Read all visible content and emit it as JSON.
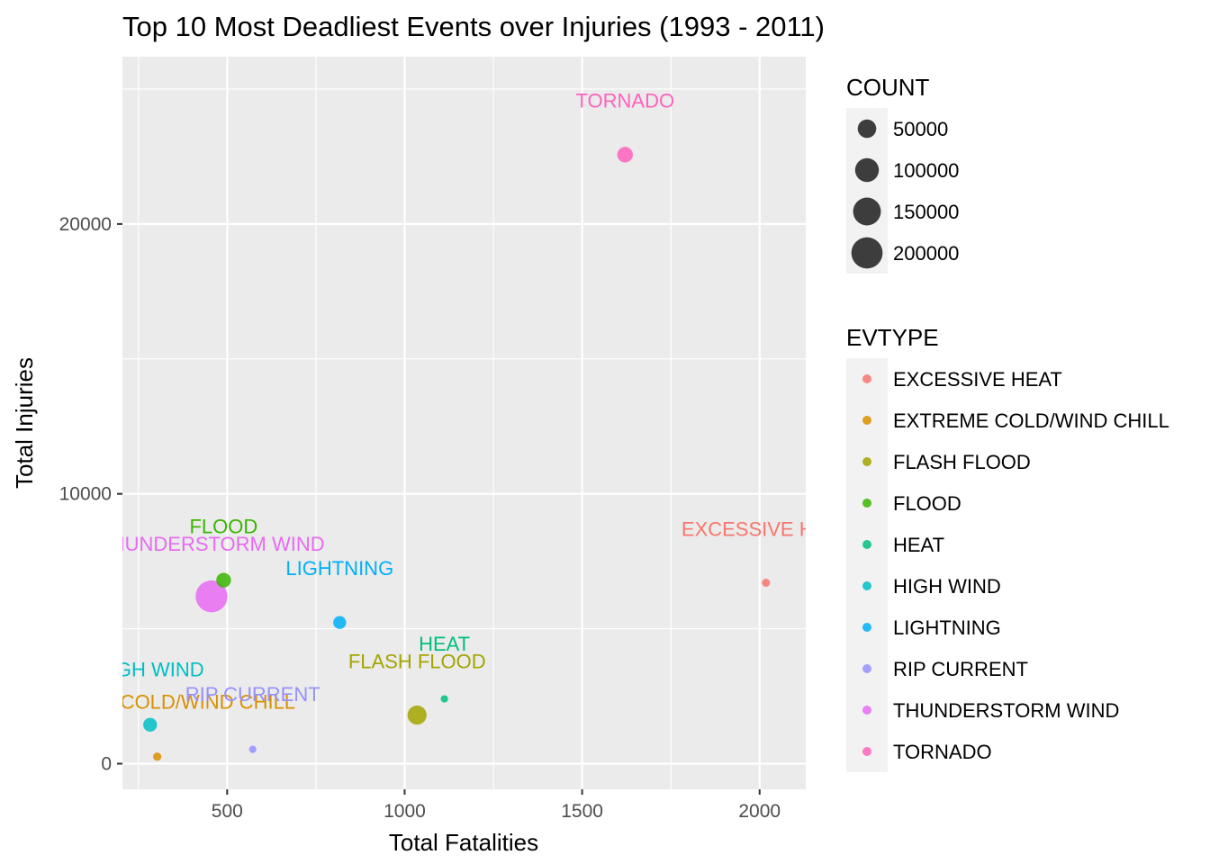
{
  "chart_data": {
    "type": "scatter",
    "title": "Top 10 Most Deadliest Events over Injuries (1993 - 2011)",
    "xlabel": "Total Fatalities",
    "ylabel": "Total Injuries",
    "xlim": [
      205,
      2130
    ],
    "ylim": [
      -950,
      26200
    ],
    "xticks": [
      500,
      1000,
      1500,
      2000
    ],
    "yticks": [
      0,
      10000,
      20000
    ],
    "grid": true,
    "legend_placement": "right",
    "size_legend": {
      "title": "COUNT",
      "entries": [
        {
          "label": "50000",
          "value": 50000
        },
        {
          "label": "100000",
          "value": 100000
        },
        {
          "label": "150000",
          "value": 150000
        },
        {
          "label": "200000",
          "value": 200000
        }
      ]
    },
    "color_legend": {
      "title": "EVTYPE",
      "entries": [
        {
          "label": "EXCESSIVE HEAT",
          "color": "#F8766D"
        },
        {
          "label": "EXTREME COLD/WIND CHILL",
          "color": "#D89000"
        },
        {
          "label": "FLASH FLOOD",
          "color": "#A3A500"
        },
        {
          "label": "FLOOD",
          "color": "#39B600"
        },
        {
          "label": "HEAT",
          "color": "#00BF7D"
        },
        {
          "label": "HIGH WIND",
          "color": "#00BFC4"
        },
        {
          "label": "LIGHTNING",
          "color": "#00B0F6"
        },
        {
          "label": "RIP CURRENT",
          "color": "#9590FF"
        },
        {
          "label": "THUNDERSTORM WIND",
          "color": "#E76BF3"
        },
        {
          "label": "TORNADO",
          "color": "#FF62BC"
        }
      ]
    },
    "points": [
      {
        "name": "EXCESSIVE HEAT",
        "label": "EXCESSIVE HEAT",
        "x": 2018,
        "y": 6703,
        "count": 1700,
        "color": "#F8766D",
        "label_x": 2018,
        "label_y": 8700
      },
      {
        "name": "EXTREME COLD/WIND CHILL",
        "label": "EXTREME COLD/WIND CHILL",
        "x": 303,
        "y": 260,
        "count": 2000,
        "color": "#D89000",
        "label_x": 303,
        "label_y": 2300
      },
      {
        "name": "FLASH FLOOD",
        "label": "FLASH FLOOD",
        "x": 1035,
        "y": 1800,
        "count": 55000,
        "color": "#A3A500",
        "label_x": 1035,
        "label_y": 3800
      },
      {
        "name": "FLOOD",
        "label": "FLOOD",
        "x": 490,
        "y": 6800,
        "count": 25000,
        "color": "#39B600",
        "label_x": 490,
        "label_y": 8800
      },
      {
        "name": "HEAT",
        "label": "HEAT",
        "x": 1112,
        "y": 2400,
        "count": 800,
        "color": "#00BF7D",
        "label_x": 1112,
        "label_y": 4450
      },
      {
        "name": "HIGH WIND",
        "label": "HIGH WIND",
        "x": 283,
        "y": 1440,
        "count": 20000,
        "color": "#00BFC4",
        "label_x": 283,
        "label_y": 3500
      },
      {
        "name": "LIGHTNING",
        "label": "LIGHTNING",
        "x": 817,
        "y": 5230,
        "count": 16000,
        "color": "#00B0F6",
        "label_x": 817,
        "label_y": 7250
      },
      {
        "name": "RIP CURRENT",
        "label": "RIP CURRENT",
        "x": 572,
        "y": 530,
        "count": 800,
        "color": "#9590FF",
        "label_x": 572,
        "label_y": 2580
      },
      {
        "name": "THUNDERSTORM WIND",
        "label": "THUNDERSTORM WIND",
        "x": 456,
        "y": 6200,
        "count": 210000,
        "color": "#E76BF3",
        "label_x": 456,
        "label_y": 8150
      },
      {
        "name": "TORNADO",
        "label": "TORNADO",
        "x": 1621,
        "y": 22570,
        "count": 30000,
        "color": "#FF62BC",
        "label_x": 1621,
        "label_y": 24580
      }
    ]
  }
}
